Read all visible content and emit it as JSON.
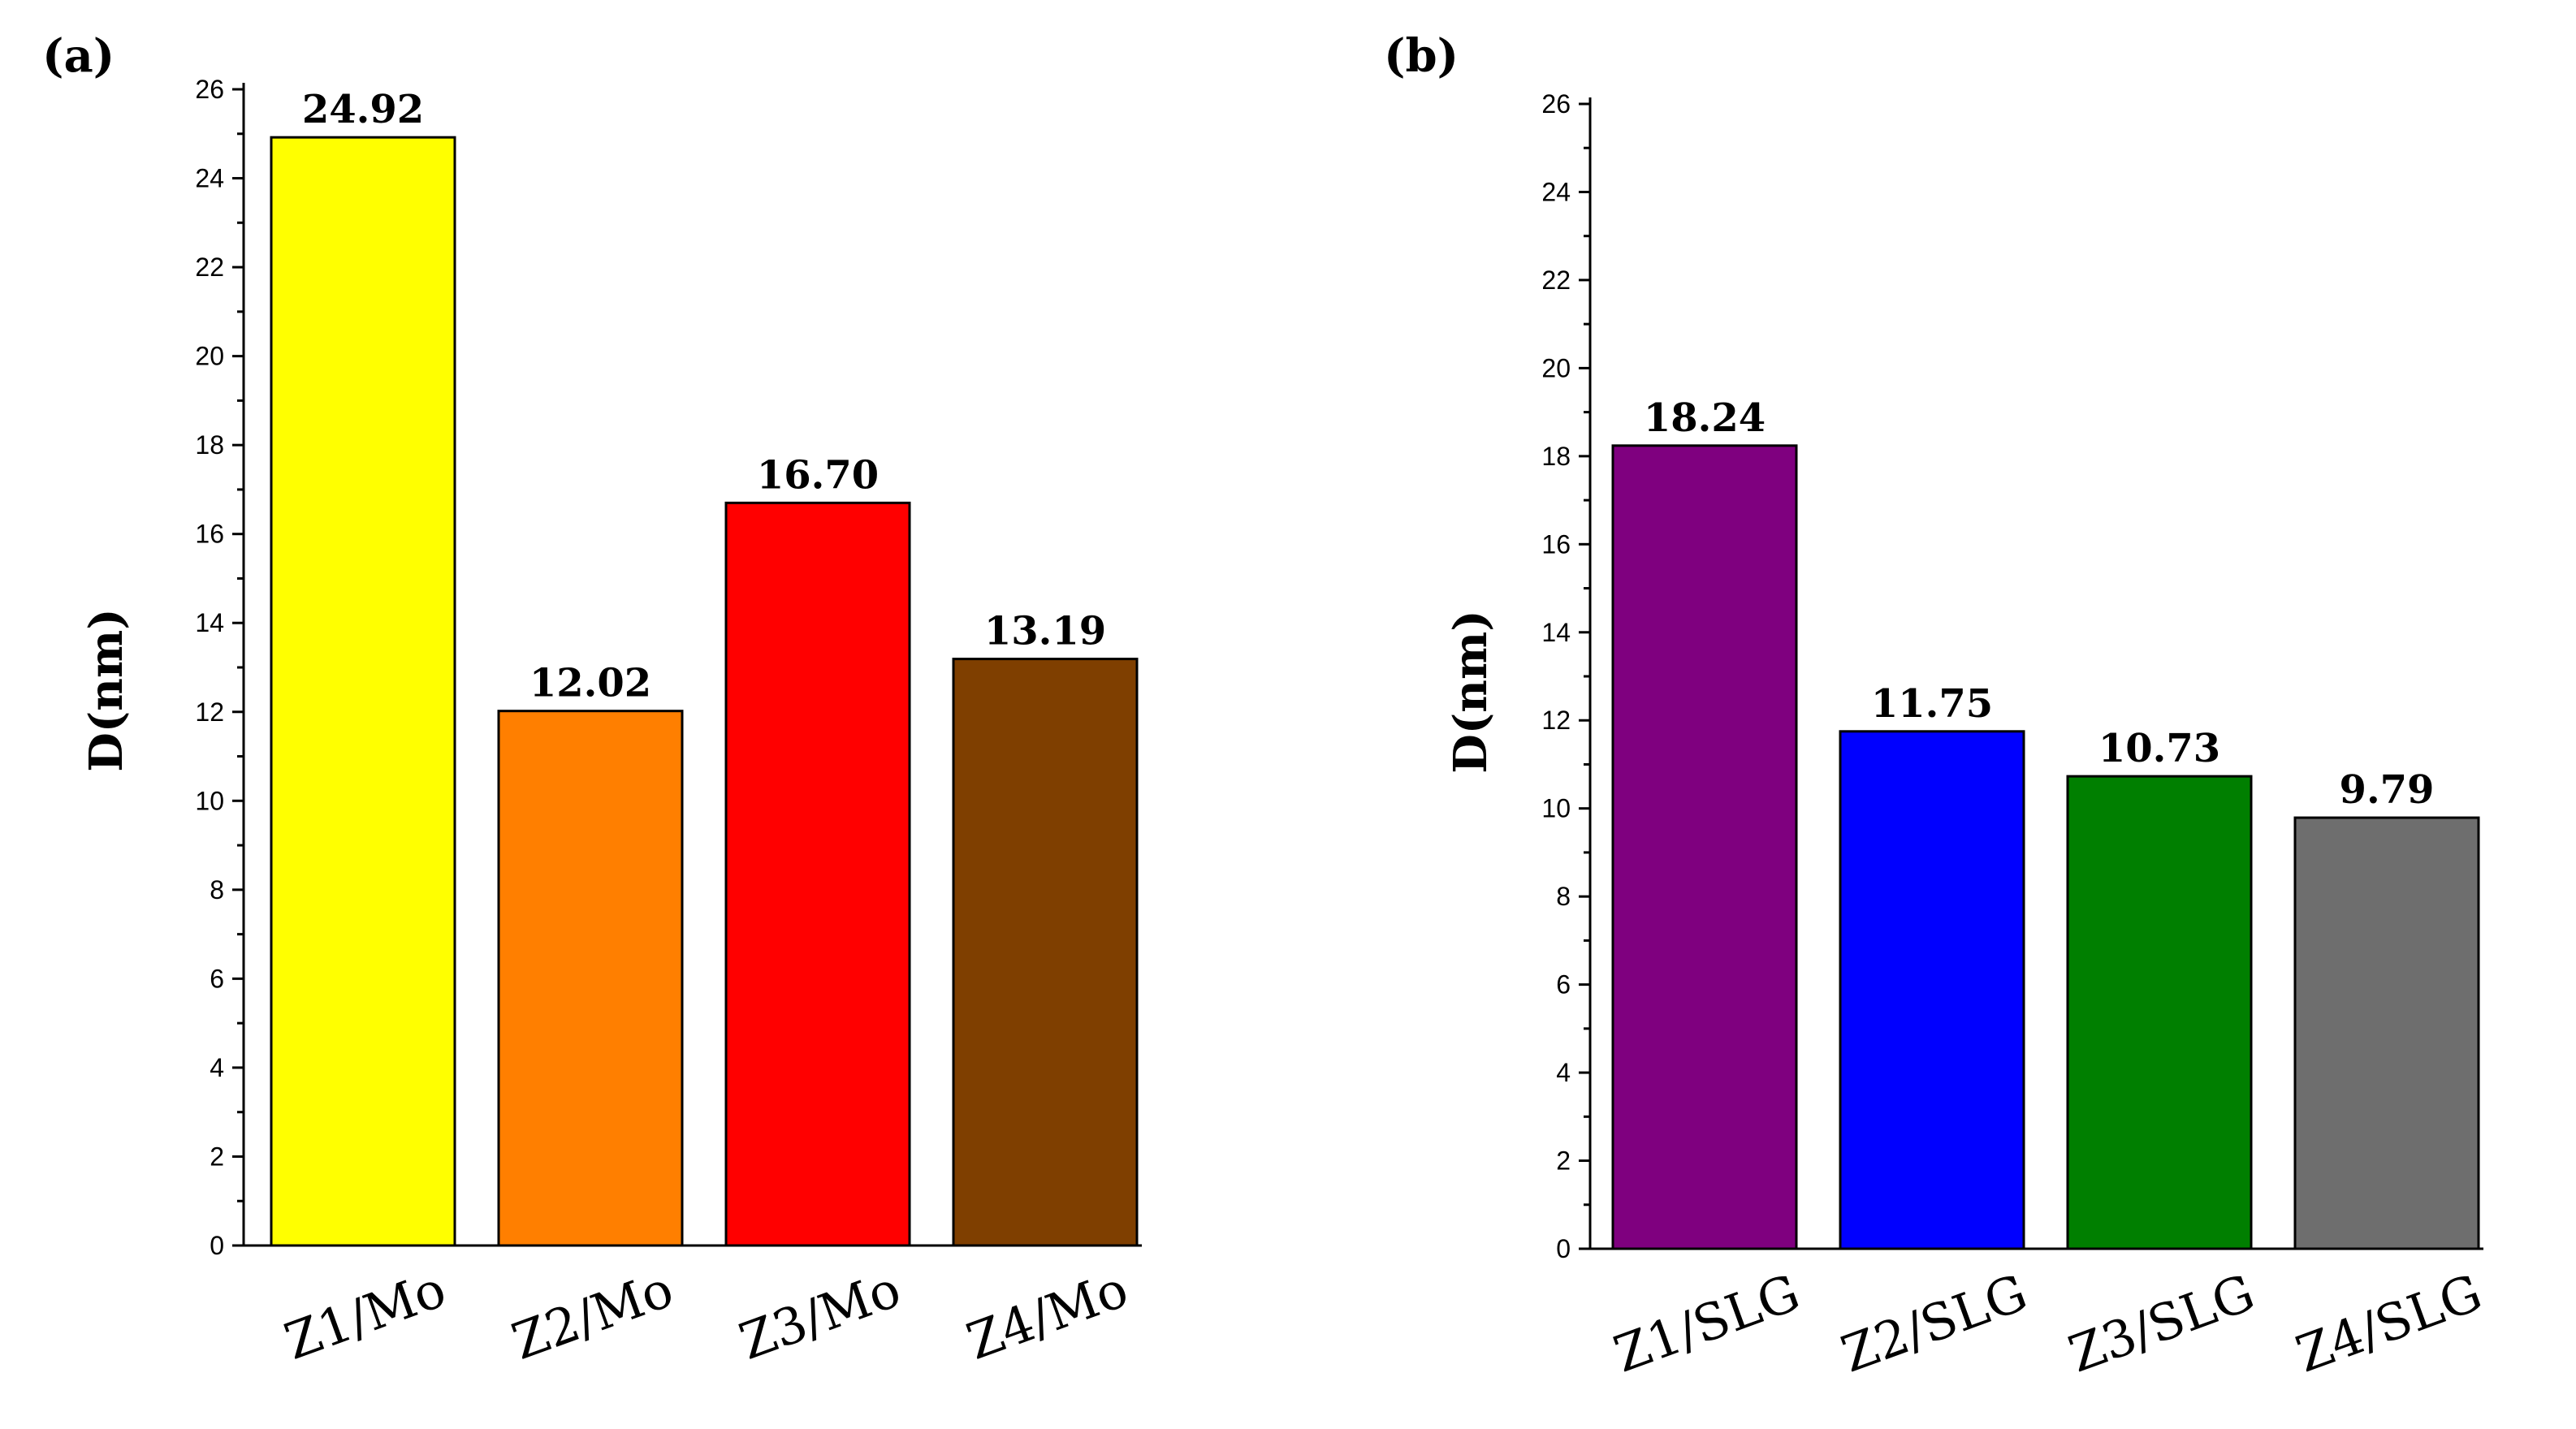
{
  "chart_data": [
    {
      "panel": "(a)",
      "type": "bar",
      "ylabel": "D(nm)",
      "xlabel": "",
      "ylim": [
        0,
        26
      ],
      "ytick_step": 2,
      "categories": [
        "Z1/Mo",
        "Z2/Mo",
        "Z3/Mo",
        "Z4/Mo"
      ],
      "values": [
        24.92,
        12.02,
        16.7,
        13.19
      ],
      "labels": [
        "24.92",
        "12.02",
        "16.70",
        "13.19"
      ],
      "colors": [
        "#ffff00",
        "#ff7f00",
        "#ff0000",
        "#7f3f00"
      ]
    },
    {
      "panel": "(b)",
      "type": "bar",
      "ylabel": "D(nm)",
      "xlabel": "",
      "ylim": [
        0,
        26
      ],
      "ytick_step": 2,
      "categories": [
        "Z1/SLG",
        "Z2/SLG",
        "Z3/SLG",
        "Z4/SLG"
      ],
      "values": [
        18.24,
        11.75,
        10.73,
        9.79
      ],
      "labels": [
        "18.24",
        "11.75",
        "10.73",
        "9.79"
      ],
      "colors": [
        "#7f007f",
        "#0000ff",
        "#007f00",
        "#6e6e6e"
      ]
    }
  ]
}
